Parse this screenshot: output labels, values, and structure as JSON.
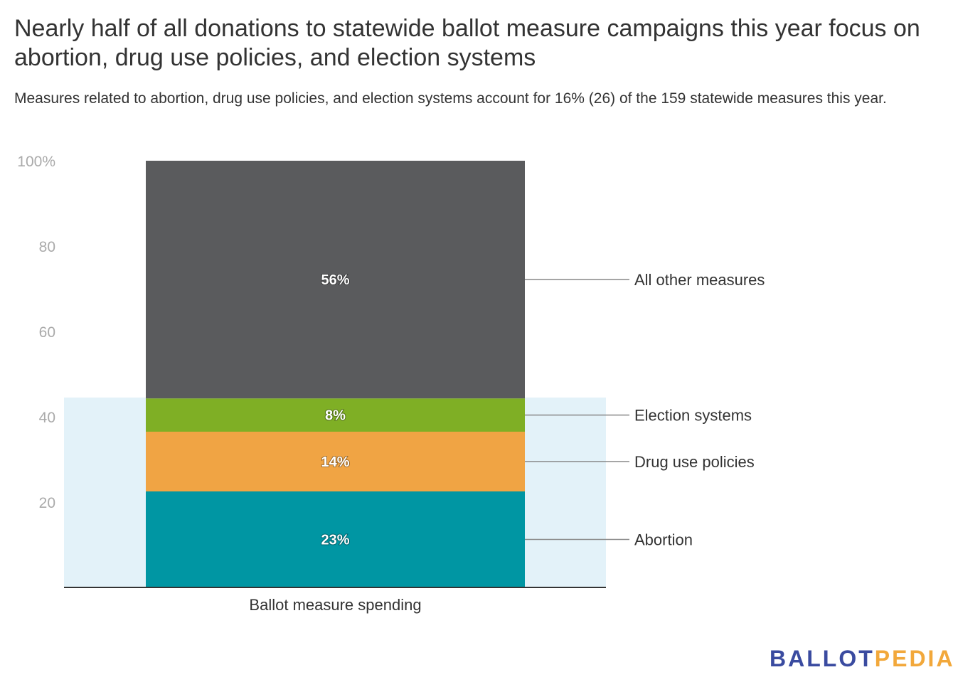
{
  "title": "Nearly half of all donations to statewide ballot measure campaigns this year focus on abortion, drug use policies, and election systems",
  "subtitle": "Measures related to abortion, drug use policies, and election systems account for 16% (26) of the 159 statewide measures this year.",
  "logo": {
    "part1": "BALLOT",
    "part2": "PEDIA"
  },
  "chart_data": {
    "type": "bar",
    "stacked": true,
    "categories": [
      "Ballot measure spending"
    ],
    "ylim": [
      0,
      100
    ],
    "yticks": [
      20,
      40,
      60,
      80,
      100
    ],
    "ytick_labels": [
      "20",
      "40",
      "60",
      "80",
      "100%"
    ],
    "highlight_band": {
      "from": 0,
      "to": 44.5,
      "color": "#e3f2f9"
    },
    "series": [
      {
        "name": "Abortion",
        "values": [
          22.5
        ],
        "label": "23%",
        "color": "#0096a3"
      },
      {
        "name": "Drug use policies",
        "values": [
          14
        ],
        "label": "14%",
        "color": "#f0a444"
      },
      {
        "name": "Election systems",
        "values": [
          7.8
        ],
        "label": "8%",
        "color": "#7faf25"
      },
      {
        "name": "All other measures",
        "values": [
          55.7
        ],
        "label": "56%",
        "color": "#5a5b5d"
      }
    ],
    "xlabel": "",
    "ylabel": ""
  }
}
